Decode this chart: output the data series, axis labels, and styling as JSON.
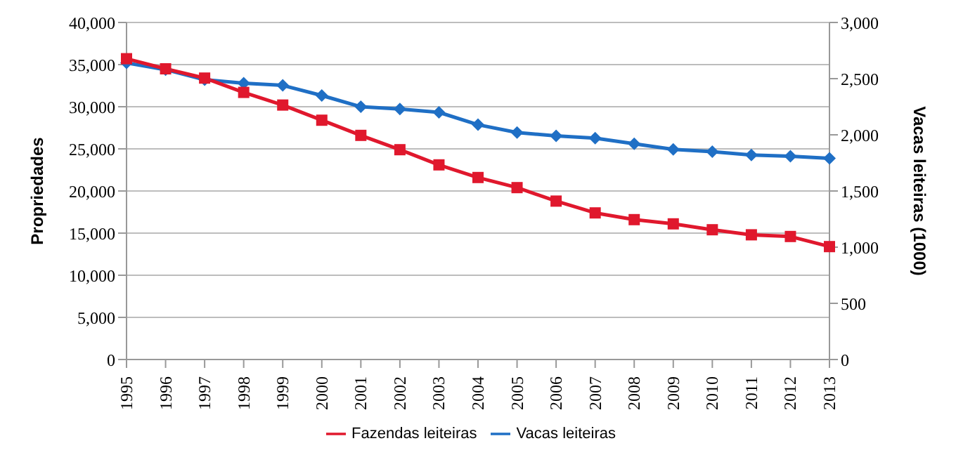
{
  "chart_data": {
    "type": "line",
    "ylabel": "Propriedades",
    "y2label": "Vacas leiteiras (1000)",
    "categories": [
      "1995",
      "1996",
      "1997",
      "1998",
      "1999",
      "2000",
      "2001",
      "2002",
      "2003",
      "2004",
      "2005",
      "2006",
      "2007",
      "2008",
      "2009",
      "2010",
      "2011",
      "2012",
      "2013"
    ],
    "series": [
      {
        "name": "Fazendas leiteiras",
        "color": "#e0182d",
        "marker": "square",
        "values": [
          35700,
          34500,
          33400,
          31700,
          30200,
          28400,
          26600,
          24900,
          23100,
          21600,
          20400,
          18800,
          17400,
          16600,
          16100,
          15400,
          14800,
          14600,
          13400
        ]
      },
      {
        "name": "Vacas leiteiras",
        "color": "#1f6fc5",
        "marker": "diamond",
        "axis": "y2",
        "values": [
          2640,
          2580,
          2490,
          2460,
          2440,
          2350,
          2250,
          2230,
          2200,
          2090,
          2020,
          1990,
          1970,
          1920,
          1870,
          1850,
          1820,
          1810,
          1790
        ]
      }
    ],
    "ylim": [
      0,
      40000
    ],
    "yticks": [
      0,
      {
        "value": 5000,
        "label": "5,000"
      },
      {
        "value": 10000,
        "label": "10,000"
      },
      {
        "value": 15000,
        "label": "15,000"
      },
      {
        "value": 20000,
        "label": "20,000"
      },
      {
        "value": 25000,
        "label": "25,000"
      },
      {
        "value": 30000,
        "label": "30,000"
      },
      {
        "value": 35000,
        "label": "35,000"
      },
      {
        "value": 40000,
        "label": "40,000"
      }
    ],
    "y2lim": [
      0,
      3000
    ],
    "y2ticks": [
      0,
      500,
      {
        "value": 1000,
        "label": "1,000"
      },
      {
        "value": 1500,
        "label": "1,500"
      },
      {
        "value": 2000,
        "label": "2,000"
      },
      {
        "value": 2500,
        "label": "2,500"
      },
      {
        "value": 3000,
        "label": "3,000"
      }
    ],
    "grid": "y",
    "legend": "bottom"
  }
}
